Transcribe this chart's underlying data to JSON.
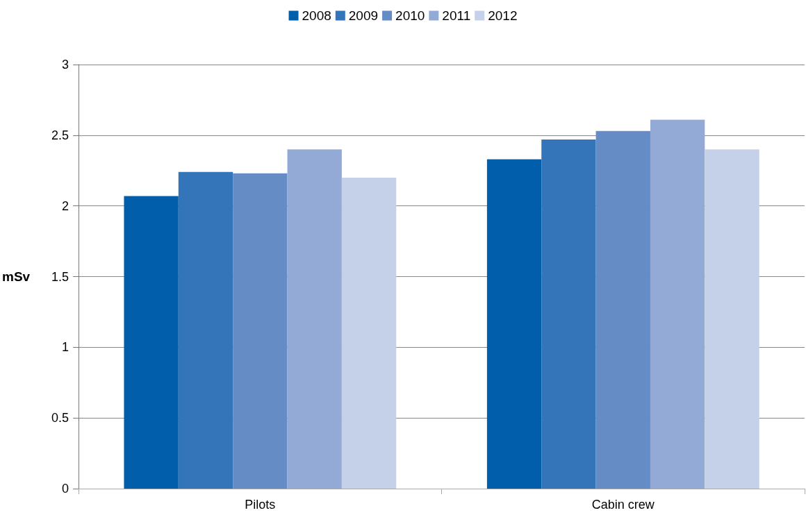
{
  "chart_data": {
    "type": "bar",
    "ylabel": "mSv",
    "categories": [
      "Pilots",
      "Cabin crew"
    ],
    "series": [
      {
        "name": "2008",
        "color": "#005eaa",
        "values": [
          2.07,
          2.33
        ]
      },
      {
        "name": "2009",
        "color": "#3375b8",
        "values": [
          2.24,
          2.47
        ]
      },
      {
        "name": "2010",
        "color": "#658cc4",
        "values": [
          2.23,
          2.53
        ]
      },
      {
        "name": "2011",
        "color": "#93aad6",
        "values": [
          2.4,
          2.61
        ]
      },
      {
        "name": "2012",
        "color": "#c5d1e8",
        "values": [
          2.2,
          2.4
        ]
      }
    ],
    "ylim": [
      0,
      3
    ],
    "yticks": [
      0,
      0.5,
      1,
      1.5,
      2,
      2.5,
      3
    ],
    "grid": "y",
    "legend": "top"
  }
}
